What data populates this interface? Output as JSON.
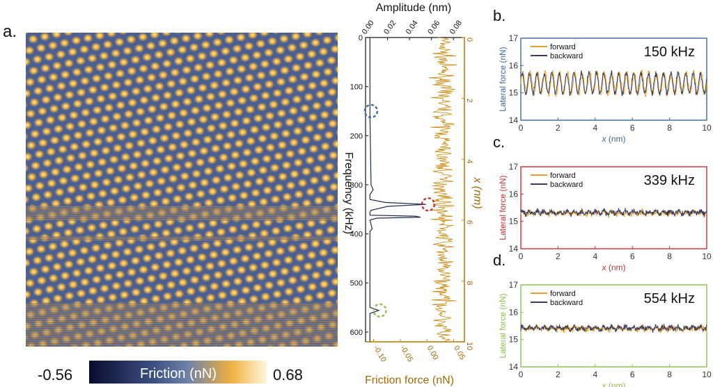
{
  "panel_labels": {
    "a": "a.",
    "b": "b.",
    "c": "c.",
    "d": "d."
  },
  "colors": {
    "amber": "#c8860a",
    "forward": "#e8a030",
    "backward": "#3a3d5a",
    "navy": "#1e2b47",
    "blue_frame": "#3a6a9a",
    "red_frame": "#c83030",
    "green_frame": "#8cc04a",
    "cmap_low": "#0b0b2e",
    "cmap_mid": "#4a6090",
    "cmap_high": "#f0b040",
    "cmap_top": "#fff8e0"
  },
  "colorbar": {
    "min_label": "-0.56",
    "max_label": "0.68",
    "label": "Friction (nN)",
    "range": [
      -0.56,
      0.68
    ]
  },
  "chart_data": [
    {
      "type": "line",
      "panel": "a-spectrum",
      "xlabel": "Amplitude (nm)",
      "ylabel": "Frequency (kHz)",
      "xlim": [
        0,
        0.09
      ],
      "ylim": [
        620,
        0
      ],
      "xticks": [
        "0.00",
        "0.02",
        "0.04",
        "0.06",
        "0.08"
      ],
      "yticks": [
        "0",
        "100",
        "200",
        "300",
        "400",
        "500",
        "600"
      ],
      "series": [
        {
          "values": [
            [
              0.004,
              0
            ],
            [
              0.004,
              120
            ],
            [
              0.004,
              160
            ],
            [
              0.005,
              300
            ],
            [
              0.007,
              310
            ],
            [
              0.004,
              320
            ],
            [
              0.004,
              330
            ],
            [
              0.018,
              336
            ],
            [
              0.055,
              340
            ],
            [
              0.02,
              344
            ],
            [
              0.005,
              352
            ],
            [
              0.004,
              356
            ],
            [
              0.004,
              362
            ],
            [
              0.045,
              364
            ],
            [
              0.05,
              366
            ],
            [
              0.01,
              368
            ],
            [
              0.004,
              372
            ],
            [
              0.006,
              390
            ],
            [
              0.004,
              395
            ],
            [
              0.004,
              550
            ],
            [
              0.012,
              556
            ],
            [
              0.004,
              562
            ],
            [
              0.004,
              620
            ]
          ]
        }
      ],
      "markers": [
        {
          "freq": 150,
          "amp": 0.005,
          "color": "blue"
        },
        {
          "freq": 340,
          "amp": 0.057,
          "color": "red"
        },
        {
          "freq": 556,
          "amp": 0.013,
          "color": "green"
        }
      ]
    },
    {
      "type": "line",
      "panel": "a-friction-profile",
      "xlabel": "Friction force (nN)",
      "ylabel": "x (nm)",
      "xlim": [
        -0.115,
        0.07
      ],
      "ylim": [
        10,
        0
      ],
      "xticks": [
        "-0.10",
        "-0.05",
        "0.00",
        "0.05"
      ],
      "yticks": [
        "0",
        "2",
        "4",
        "6",
        "8",
        "10"
      ],
      "series": [
        {
          "name": "",
          "noise": {
            "mean": 0.03,
            "std": 0.018,
            "points": 400
          }
        }
      ]
    },
    {
      "type": "line",
      "panel": "b",
      "title": "150 kHz",
      "xlabel": "x (nm)",
      "ylabel": "Lateral force (nN)",
      "xlim": [
        0,
        10
      ],
      "ylim": [
        14,
        17
      ],
      "xticks": [
        "0",
        "2",
        "4",
        "6",
        "8",
        "10"
      ],
      "yticks": [
        "14",
        "15",
        "16",
        "17"
      ],
      "series": [
        {
          "name": "forward",
          "mean": 15.35,
          "amplitude": 0.4,
          "period_nm": 0.4,
          "noise": 0.12
        },
        {
          "name": "backward",
          "mean": 15.35,
          "amplitude": 0.38,
          "period_nm": 0.4,
          "noise": 0.1
        }
      ]
    },
    {
      "type": "line",
      "panel": "c",
      "title": "339  kHz",
      "xlabel": "x (nm)",
      "ylabel": "Lateral force (nN)",
      "xlim": [
        0,
        10
      ],
      "ylim": [
        14,
        17
      ],
      "xticks": [
        "0",
        "2",
        "4",
        "6",
        "8",
        "10"
      ],
      "yticks": [
        "14",
        "15",
        "16",
        "17"
      ],
      "series": [
        {
          "name": "forward",
          "mean": 15.3,
          "amplitude": 0.05,
          "period_nm": 0.4,
          "noise": 0.1
        },
        {
          "name": "backward",
          "mean": 15.33,
          "amplitude": 0.05,
          "period_nm": 0.4,
          "noise": 0.1
        }
      ]
    },
    {
      "type": "line",
      "panel": "d",
      "title": "554 kHz",
      "xlabel": "x (nm)",
      "ylabel": "Lateral force (nN)",
      "xlim": [
        0,
        10
      ],
      "ylim": [
        14,
        17
      ],
      "xticks": [
        "0",
        "2",
        "4",
        "6",
        "8",
        "10"
      ],
      "yticks": [
        "14",
        "15",
        "16",
        "17"
      ],
      "series": [
        {
          "name": "forward",
          "mean": 15.4,
          "amplitude": 0.05,
          "period_nm": 0.4,
          "noise": 0.1
        },
        {
          "name": "backward",
          "mean": 15.42,
          "amplitude": 0.05,
          "period_nm": 0.4,
          "noise": 0.1
        }
      ]
    }
  ]
}
